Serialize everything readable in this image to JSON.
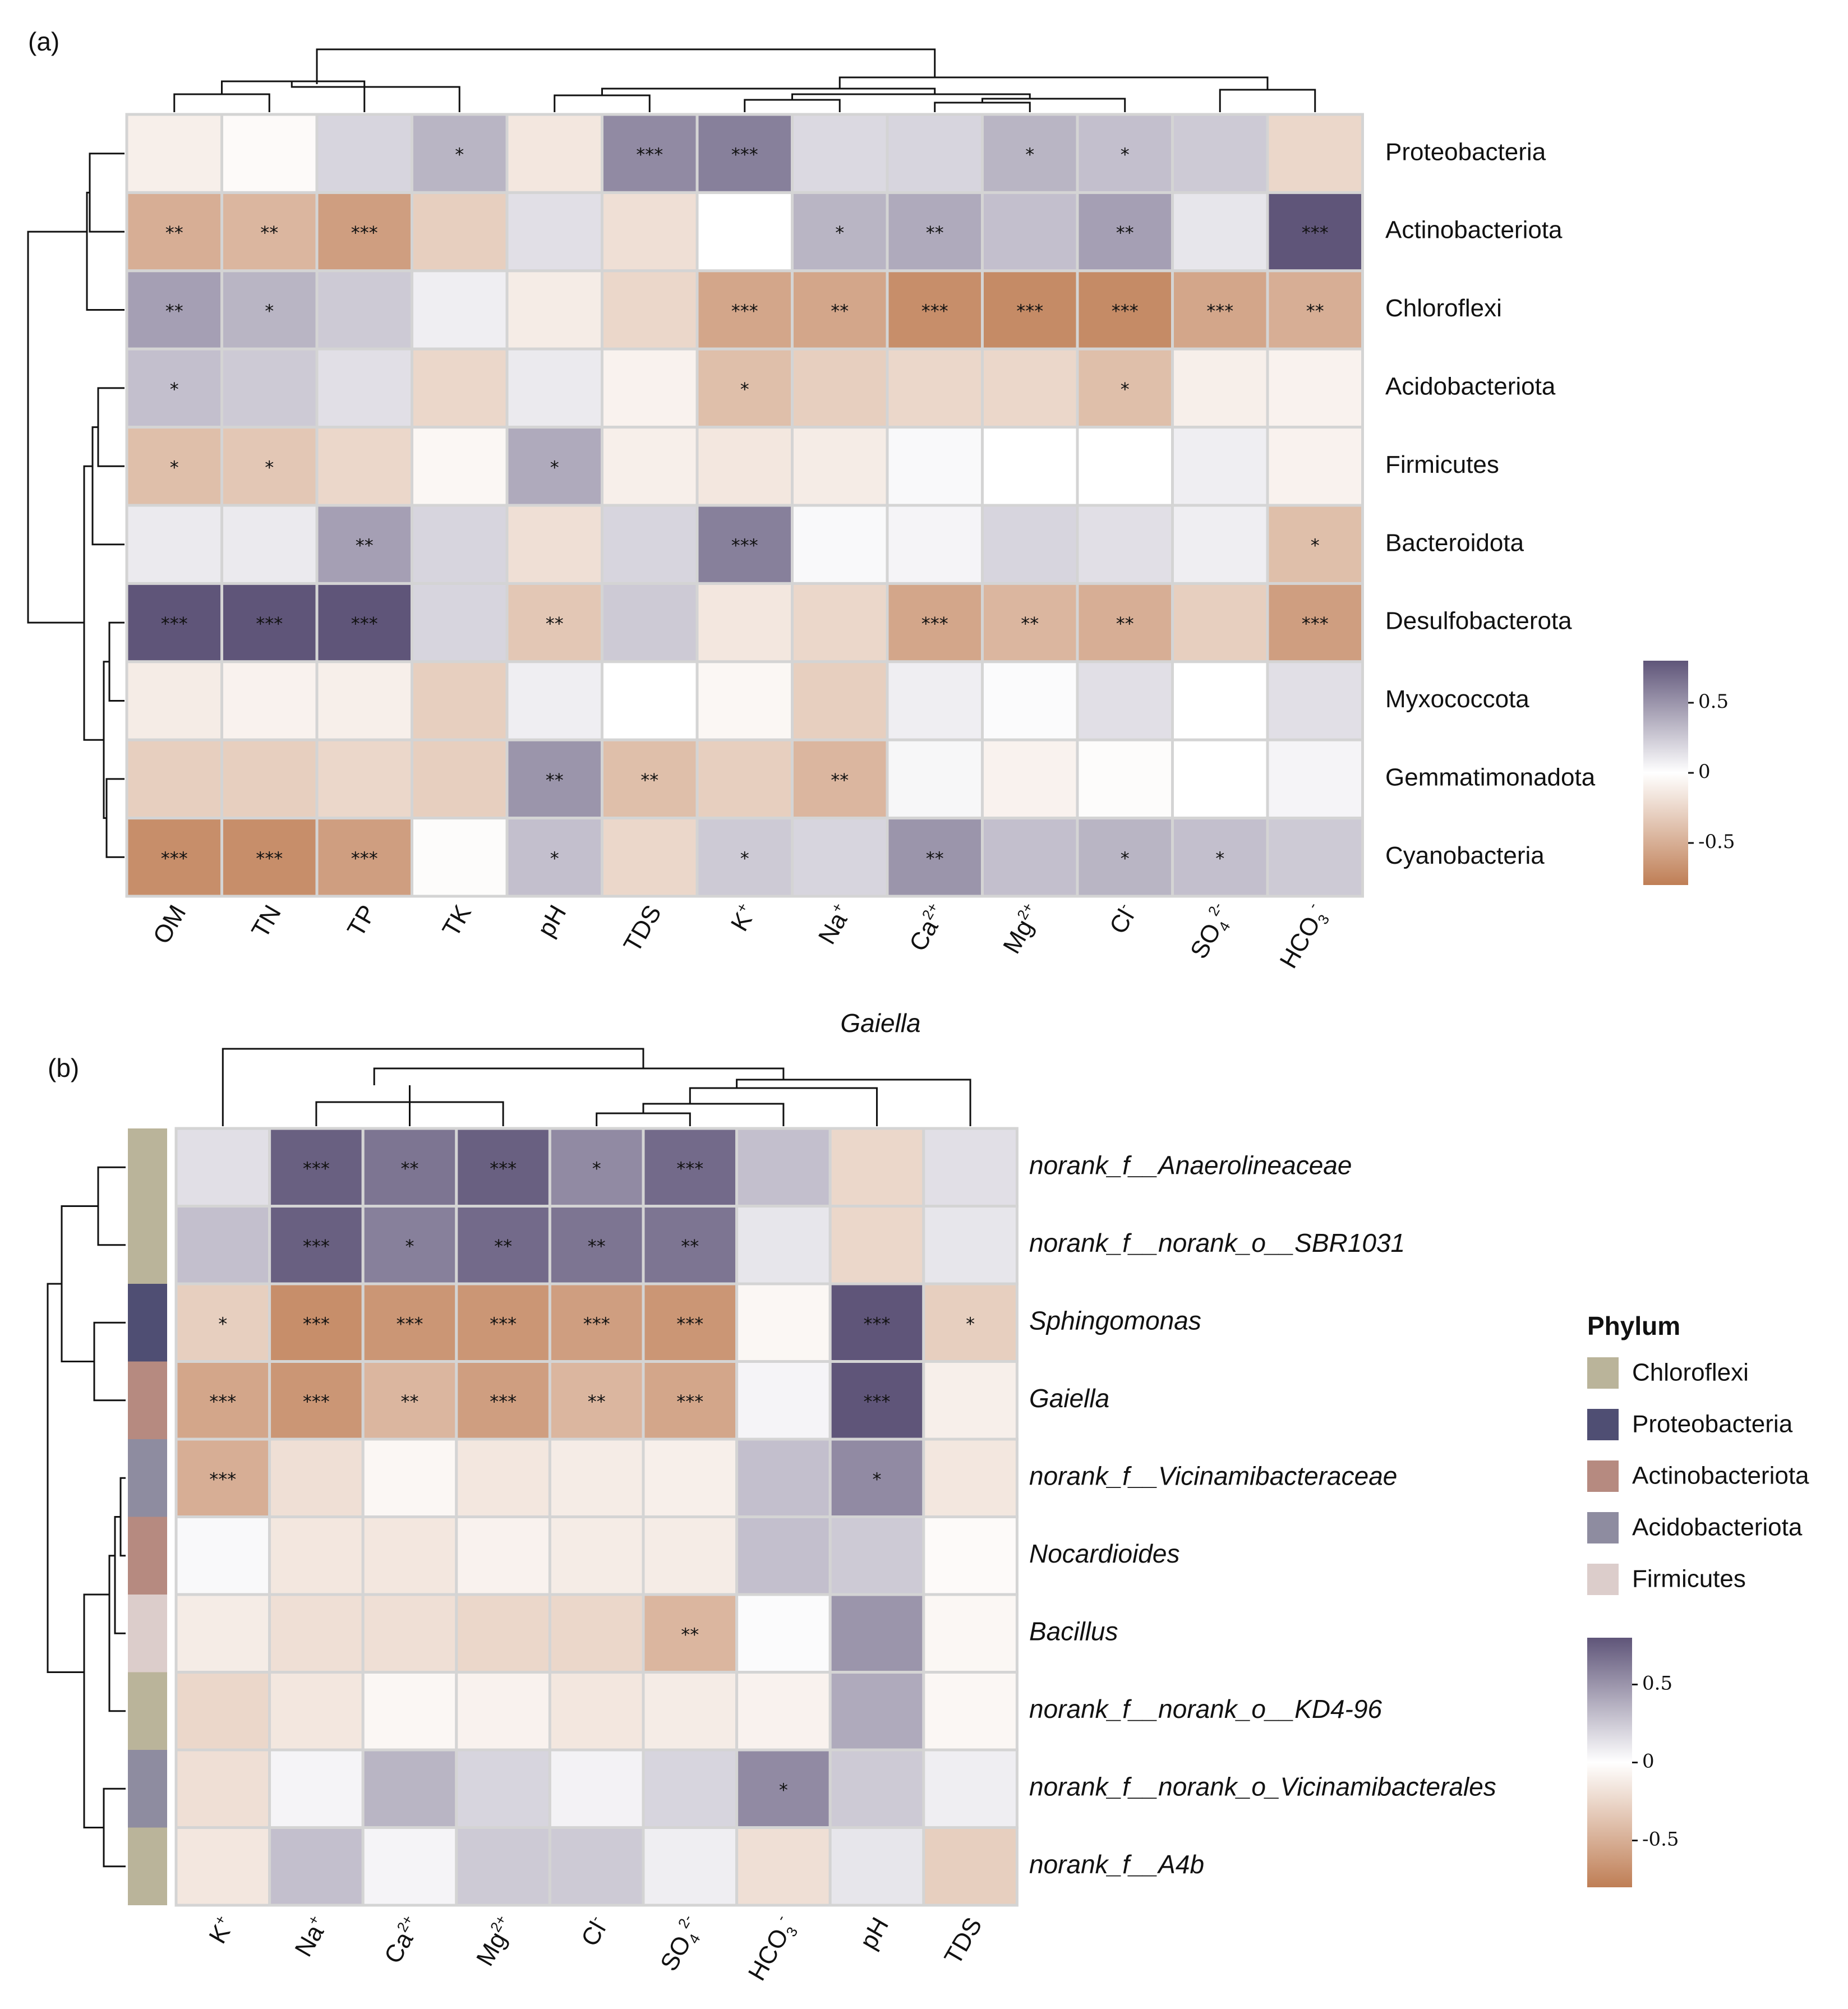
{
  "figure": {
    "panel_a_label": "(a)",
    "panel_b_label": "(b)",
    "between_label": "Gaiella"
  },
  "colors": {
    "negative": "#bf7e55",
    "zero": "#ffffff",
    "positive": "#5f5579",
    "grid": "#d4d4d4"
  },
  "chart_data": [
    {
      "type": "heatmap",
      "panel": "(a)",
      "title": "",
      "rows": [
        "Proteobacteria",
        "Actinobacteriota",
        "Chloroflexi",
        "Acidobacteriota",
        "Firmicutes",
        "Bacteroidota",
        "Desulfobacterota",
        "Myxococcota",
        "Gemmatimonadota",
        "Cyanobacteria"
      ],
      "columns": [
        {
          "base": "OM",
          "sup": "",
          "sub": ""
        },
        {
          "base": "TN",
          "sup": "",
          "sub": ""
        },
        {
          "base": "TP",
          "sup": "",
          "sub": ""
        },
        {
          "base": "TK",
          "sup": "",
          "sub": ""
        },
        {
          "base": "pH",
          "sup": "",
          "sub": ""
        },
        {
          "base": "TDS",
          "sup": "",
          "sub": ""
        },
        {
          "base": "K",
          "sup": "+",
          "sub": ""
        },
        {
          "base": "Na",
          "sup": "+",
          "sub": ""
        },
        {
          "base": "Ca",
          "sup": "2+",
          "sub": ""
        },
        {
          "base": "Mg",
          "sup": "2+",
          "sub": ""
        },
        {
          "base": "Cl",
          "sup": "-",
          "sub": ""
        },
        {
          "base": "SO",
          "sup": "2-",
          "sub": "4"
        },
        {
          "base": "HCO",
          "sup": "-",
          "sub": "3"
        }
      ],
      "values": [
        [
          -0.1,
          -0.03,
          0.2,
          0.35,
          -0.15,
          0.55,
          0.6,
          0.18,
          0.2,
          0.35,
          0.3,
          0.25,
          -0.25
        ],
        [
          -0.5,
          -0.45,
          -0.6,
          -0.3,
          0.15,
          -0.2,
          0.0,
          0.35,
          0.4,
          0.3,
          0.45,
          0.12,
          0.8
        ],
        [
          0.45,
          0.35,
          0.25,
          0.08,
          -0.12,
          -0.25,
          -0.55,
          -0.55,
          -0.7,
          -0.72,
          -0.72,
          -0.55,
          -0.5
        ],
        [
          0.3,
          0.25,
          0.15,
          -0.25,
          0.1,
          -0.08,
          -0.4,
          -0.3,
          -0.25,
          -0.25,
          -0.4,
          -0.1,
          -0.08
        ],
        [
          -0.4,
          -0.35,
          -0.25,
          -0.05,
          0.4,
          -0.1,
          -0.15,
          -0.12,
          0.03,
          0.0,
          0.0,
          0.08,
          -0.08
        ],
        [
          0.1,
          0.1,
          0.45,
          0.2,
          -0.2,
          0.2,
          0.6,
          0.03,
          0.05,
          0.2,
          0.15,
          0.08,
          -0.4
        ],
        [
          0.8,
          0.8,
          0.8,
          0.2,
          -0.35,
          0.25,
          -0.15,
          -0.25,
          -0.55,
          -0.45,
          -0.5,
          -0.3,
          -0.6
        ],
        [
          -0.12,
          -0.08,
          -0.1,
          -0.3,
          0.08,
          0.0,
          -0.05,
          -0.3,
          0.08,
          0.02,
          0.15,
          0.0,
          0.15
        ],
        [
          -0.3,
          -0.3,
          -0.25,
          -0.3,
          0.5,
          -0.4,
          -0.3,
          -0.45,
          0.04,
          -0.08,
          -0.02,
          0.0,
          0.05
        ],
        [
          -0.7,
          -0.7,
          -0.6,
          -0.02,
          0.3,
          -0.25,
          0.25,
          0.2,
          0.5,
          0.3,
          0.35,
          0.3,
          0.25
        ]
      ],
      "significance": [
        [
          "",
          "",
          "",
          "*",
          "",
          "***",
          "***",
          "",
          "",
          "*",
          "*",
          "",
          ""
        ],
        [
          "**",
          "**",
          "***",
          "",
          "",
          "",
          "",
          "*",
          "**",
          "",
          "**",
          "",
          "***"
        ],
        [
          "**",
          "*",
          "",
          "",
          "",
          "",
          "***",
          "**",
          "***",
          "***",
          "***",
          "***",
          "**"
        ],
        [
          "*",
          "",
          "",
          "",
          "",
          "",
          "*",
          "",
          "",
          "",
          "*",
          "",
          ""
        ],
        [
          "*",
          "*",
          "",
          "",
          "*",
          "",
          "",
          "",
          "",
          "",
          "",
          "",
          ""
        ],
        [
          "",
          "",
          "**",
          "",
          "",
          "",
          "***",
          "",
          "",
          "",
          "",
          "",
          "*"
        ],
        [
          "***",
          "***",
          "***",
          "",
          "**",
          "",
          "",
          "",
          "***",
          "**",
          "**",
          "",
          "***"
        ],
        [
          "",
          "",
          "",
          "",
          "",
          "",
          "",
          "",
          "",
          "",
          "",
          "",
          ""
        ],
        [
          "",
          "",
          "",
          "",
          "**",
          "**",
          "",
          "**",
          "",
          "",
          "",
          "",
          ""
        ],
        [
          "***",
          "***",
          "***",
          "",
          "*",
          "",
          "*",
          "",
          "**",
          "",
          "*",
          "*",
          ""
        ]
      ],
      "color_scale": {
        "min": -0.8,
        "max": 0.8,
        "ticks": [
          0.5,
          0,
          -0.5
        ],
        "tick_labels": [
          "0.5",
          "0",
          "-0.5"
        ]
      }
    },
    {
      "type": "heatmap",
      "panel": "(b)",
      "title": "",
      "rows": [
        "norank_f__Anaerolineaceae",
        "norank_f__norank_o__SBR1031",
        "Sphingomonas",
        "Gaiella",
        "norank_f__Vicinamibacteraceae",
        "Nocardioides",
        "Bacillus",
        "norank_f__norank_o__KD4-96",
        "norank_f__norank_o_Vicinamibacterales",
        "norank_f__A4b"
      ],
      "row_phylum": [
        "Chloroflexi",
        "Chloroflexi",
        "Proteobacteria",
        "Actinobacteriota",
        "Acidobacteriota",
        "Actinobacteriota",
        "Firmicutes",
        "Chloroflexi",
        "Acidobacteriota",
        "Chloroflexi"
      ],
      "columns": [
        {
          "base": "K",
          "sup": "+",
          "sub": ""
        },
        {
          "base": "Na",
          "sup": "+",
          "sub": ""
        },
        {
          "base": "Ca",
          "sup": "2+",
          "sub": ""
        },
        {
          "base": "Mg",
          "sup": "2+",
          "sub": ""
        },
        {
          "base": "Cl",
          "sup": "-",
          "sub": ""
        },
        {
          "base": "SO",
          "sup": "2-",
          "sub": "4"
        },
        {
          "base": "HCO",
          "sup": "-",
          "sub": "3"
        },
        {
          "base": "pH",
          "sup": "",
          "sub": ""
        },
        {
          "base": "TDS",
          "sup": "",
          "sub": ""
        }
      ],
      "values": [
        [
          0.15,
          0.75,
          0.65,
          0.75,
          0.55,
          0.7,
          0.3,
          -0.25,
          0.15
        ],
        [
          0.3,
          0.75,
          0.6,
          0.7,
          0.65,
          0.65,
          0.12,
          -0.25,
          0.12
        ],
        [
          -0.3,
          -0.7,
          -0.65,
          -0.65,
          -0.6,
          -0.65,
          -0.05,
          0.8,
          -0.3
        ],
        [
          -0.55,
          -0.65,
          -0.45,
          -0.6,
          -0.45,
          -0.55,
          0.05,
          0.8,
          -0.1
        ],
        [
          -0.5,
          -0.2,
          -0.05,
          -0.15,
          -0.12,
          -0.1,
          0.3,
          0.55,
          -0.15
        ],
        [
          0.03,
          -0.15,
          -0.15,
          -0.08,
          -0.12,
          -0.12,
          0.3,
          0.25,
          -0.03
        ],
        [
          -0.12,
          -0.2,
          -0.2,
          -0.25,
          -0.25,
          -0.45,
          0.02,
          0.5,
          -0.05
        ],
        [
          -0.25,
          -0.15,
          -0.05,
          -0.08,
          -0.15,
          -0.12,
          -0.08,
          0.4,
          -0.05
        ],
        [
          -0.2,
          0.05,
          0.35,
          0.2,
          0.06,
          0.2,
          0.55,
          0.25,
          0.08
        ],
        [
          -0.15,
          0.3,
          0.05,
          0.25,
          0.25,
          0.08,
          -0.2,
          0.12,
          -0.3
        ]
      ],
      "significance": [
        [
          "",
          "***",
          "**",
          "***",
          "*",
          "***",
          "",
          "",
          ""
        ],
        [
          "",
          "***",
          "*",
          "**",
          "**",
          "**",
          "",
          "",
          ""
        ],
        [
          "*",
          "***",
          "***",
          "***",
          "***",
          "***",
          "",
          "***",
          "*"
        ],
        [
          "***",
          "***",
          "**",
          "***",
          "**",
          "***",
          "",
          "***",
          ""
        ],
        [
          "***",
          "",
          "",
          "",
          "",
          "",
          "",
          "*",
          ""
        ],
        [
          "",
          "",
          "",
          "",
          "",
          "",
          "",
          "",
          ""
        ],
        [
          "",
          "",
          "",
          "",
          "",
          "**",
          "",
          "",
          ""
        ],
        [
          "",
          "",
          "",
          "",
          "",
          "",
          "",
          "",
          ""
        ],
        [
          "",
          "",
          "",
          "",
          "",
          "",
          "*",
          "",
          ""
        ],
        [
          "",
          "",
          "",
          "",
          "",
          "",
          "",
          "",
          ""
        ]
      ],
      "color_scale": {
        "min": -0.8,
        "max": 0.8,
        "ticks": [
          0.5,
          0,
          -0.5
        ],
        "tick_labels": [
          "0.5",
          "0",
          "-0.5"
        ]
      },
      "legend": {
        "title": "Phylum",
        "entries": [
          {
            "name": "Chloroflexi",
            "color": "#bab49a"
          },
          {
            "name": "Proteobacteria",
            "color": "#4f4e73"
          },
          {
            "name": "Actinobacteriota",
            "color": "#b68a80"
          },
          {
            "name": "Acidobacteriota",
            "color": "#8e8ca0"
          },
          {
            "name": "Firmicutes",
            "color": "#dccdcb"
          }
        ]
      }
    }
  ]
}
